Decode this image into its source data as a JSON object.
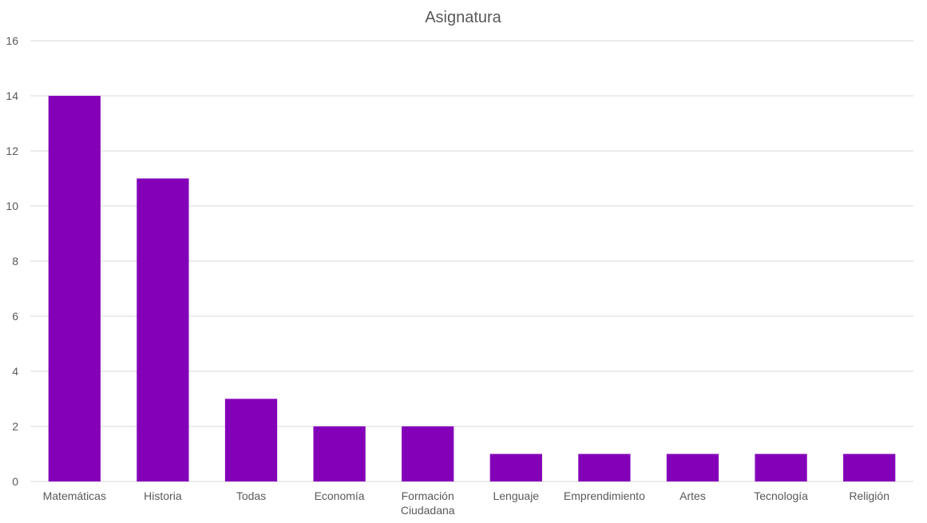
{
  "chart_data": {
    "type": "bar",
    "title": "Asignatura",
    "categories": [
      "Matemáticas",
      "Historia",
      "Todas",
      "Economía",
      "Formación Ciudadana",
      "Lenguaje",
      "Emprendimiento",
      "Artes",
      "Tecnología",
      "Religión"
    ],
    "values": [
      14,
      11,
      3,
      2,
      2,
      1,
      1,
      1,
      1,
      1
    ],
    "ylim": [
      0,
      16
    ],
    "yticks": [
      0,
      2,
      4,
      6,
      8,
      10,
      12,
      14,
      16
    ],
    "grid": true,
    "legend": "none",
    "colors": {
      "bar": "#8400b8",
      "grid": "#d9d9d9",
      "text": "#595959"
    }
  }
}
